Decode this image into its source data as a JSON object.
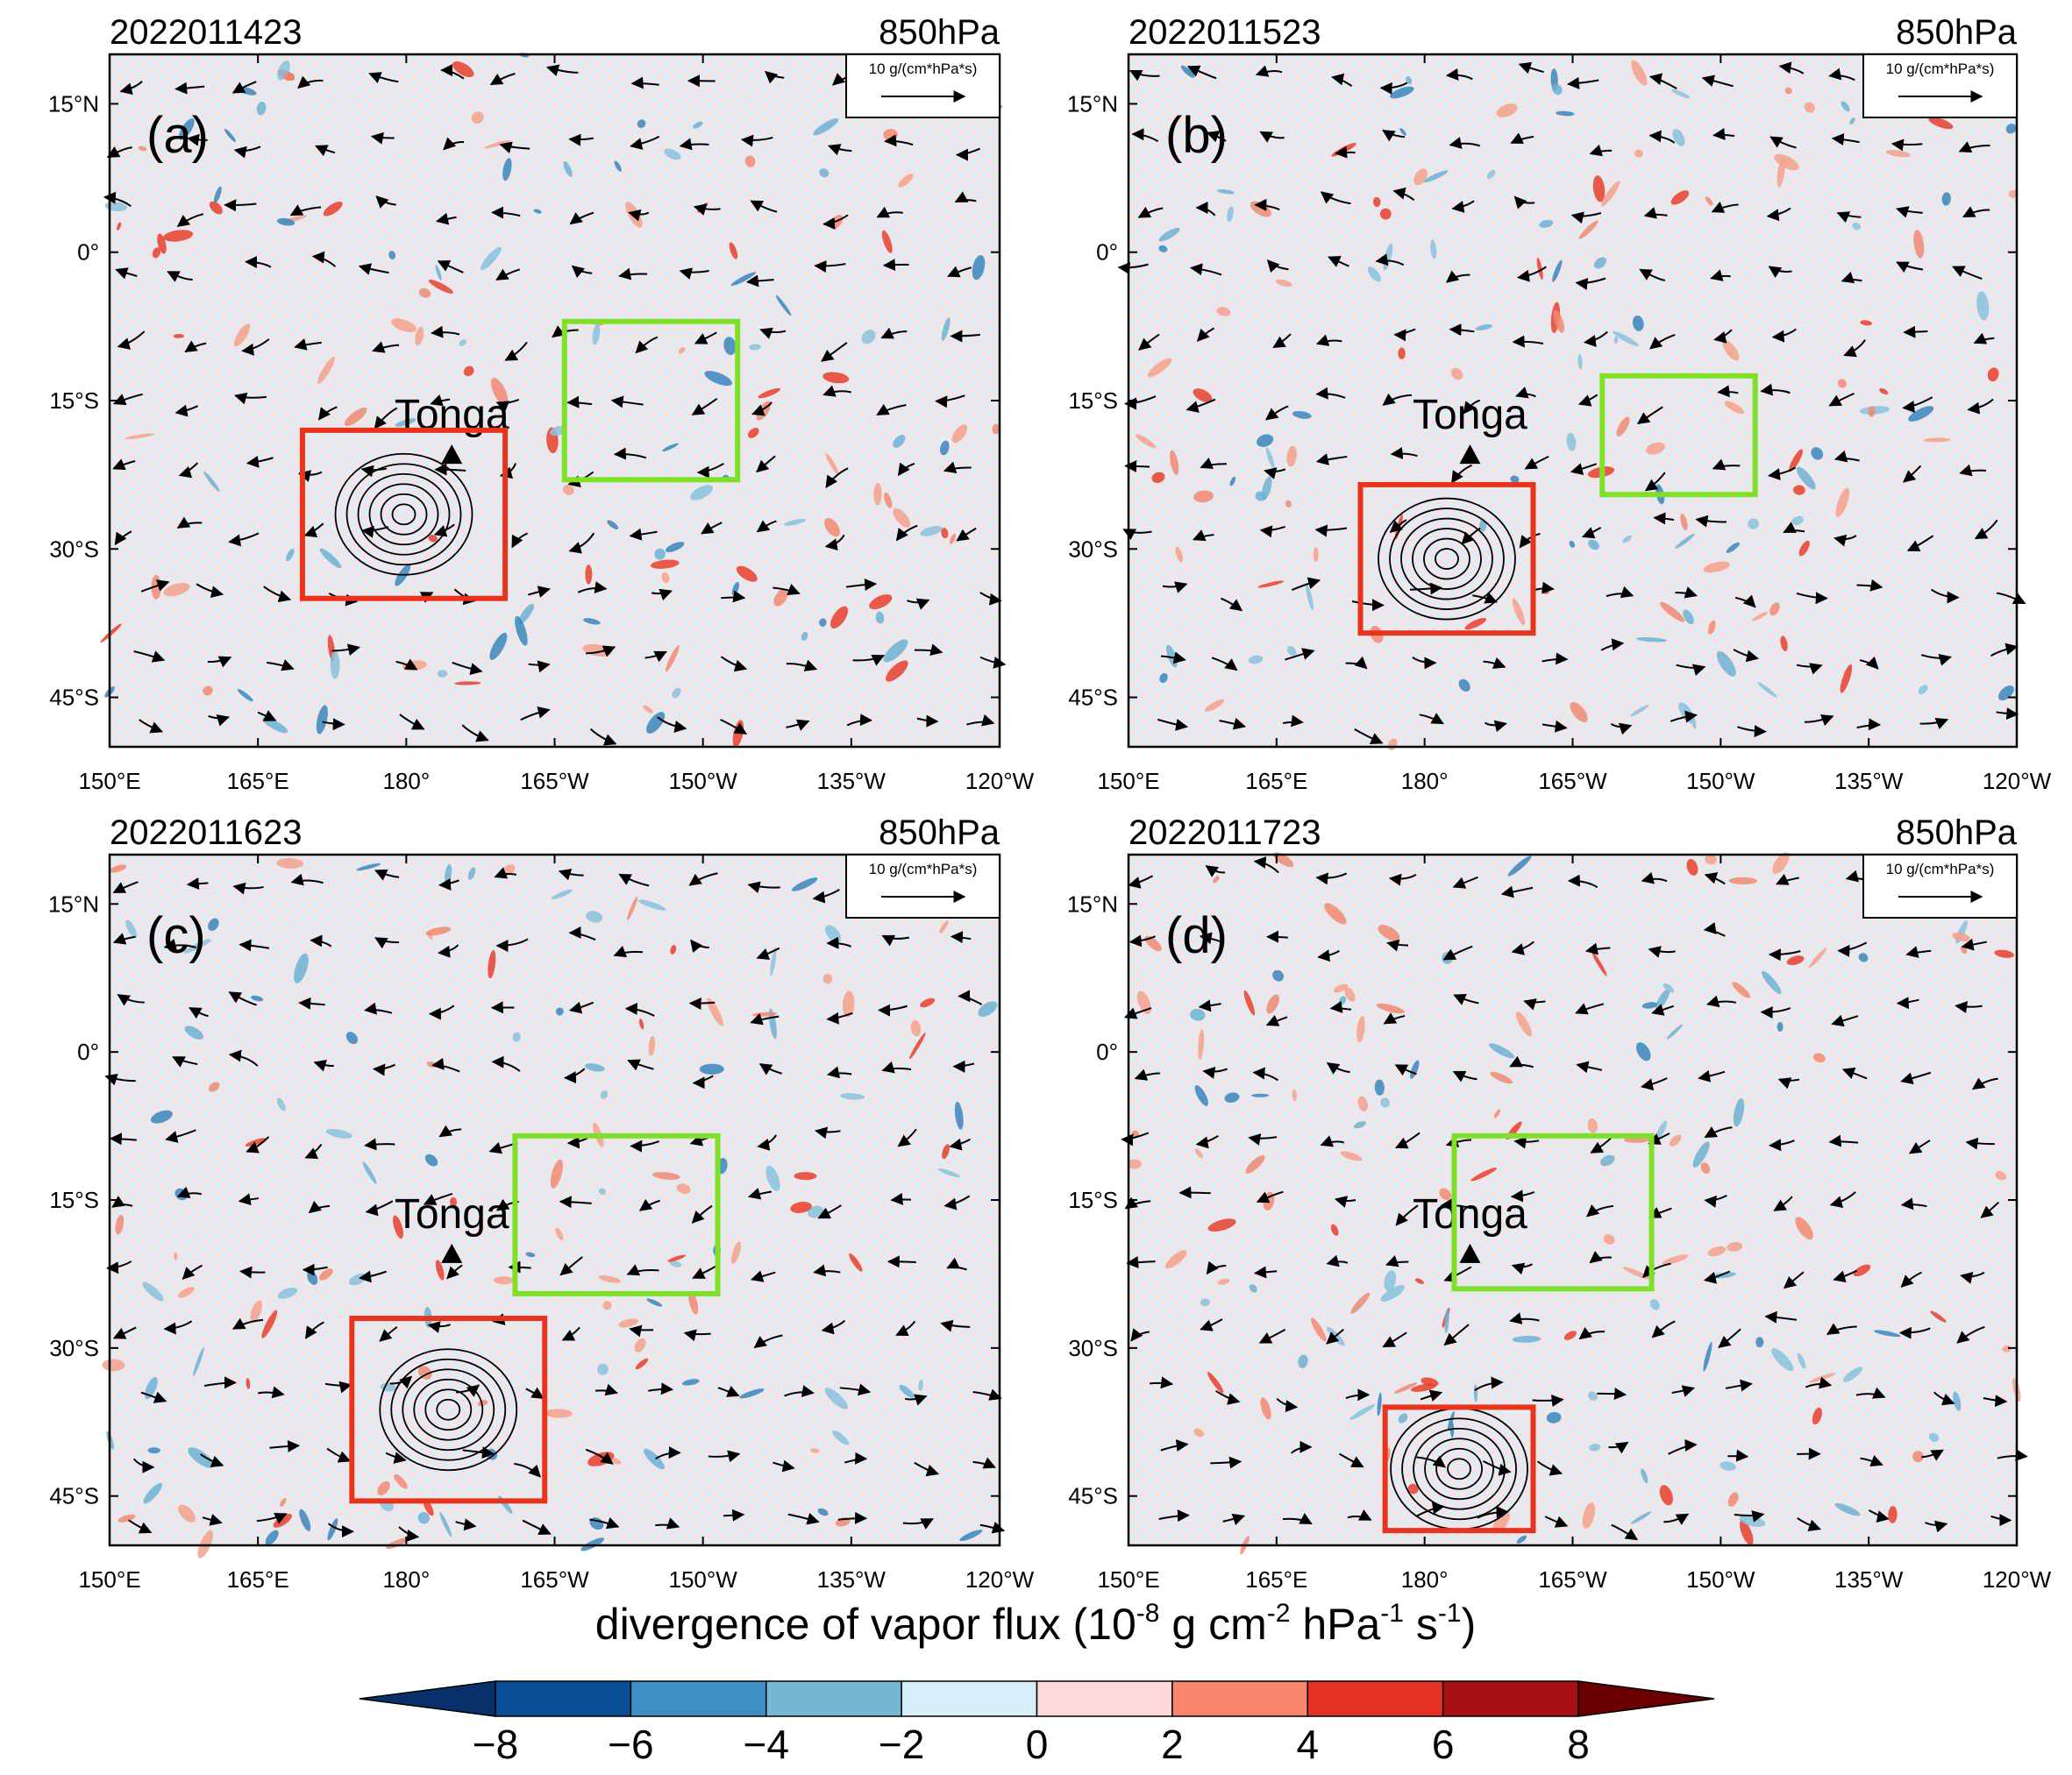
{
  "chart_data": {
    "type": "heatmap",
    "figure_kind": "four-panel map of divergence of vapor flux with streamlines",
    "level_label": "850hPa",
    "place_label": "Tonga",
    "place_marker": {
      "lon": 184.6,
      "lat": -20.5
    },
    "lon_ticks": [
      {
        "lon": 150,
        "label": "150°E"
      },
      {
        "lon": 165,
        "label": "165°E"
      },
      {
        "lon": 180,
        "label": "180°"
      },
      {
        "lon": 195,
        "label": "165°W"
      },
      {
        "lon": 210,
        "label": "150°W"
      },
      {
        "lon": 225,
        "label": "135°W"
      },
      {
        "lon": 240,
        "label": "120°W"
      }
    ],
    "lat_ticks": [
      {
        "lat": 15,
        "label": "15°N"
      },
      {
        "lat": 0,
        "label": "0°"
      },
      {
        "lat": -15,
        "label": "15°S"
      },
      {
        "lat": -30,
        "label": "30°S"
      },
      {
        "lat": -45,
        "label": "45°S"
      }
    ],
    "lon_range": [
      150,
      240
    ],
    "lat_range": [
      -50,
      20
    ],
    "reference_vector": {
      "label": "10 g/(cm*hPa*s)"
    },
    "colors": {
      "red_box": "#e8341c",
      "green_box": "#7fe02a",
      "arrow": "#000000"
    },
    "panels": [
      {
        "date": "2022011423",
        "tag": "(a)",
        "red_box": [
          169.5,
          -35,
          190,
          -18
        ],
        "green_box": [
          196,
          -23,
          213.5,
          -7
        ]
      },
      {
        "date": "2022011523",
        "tag": "(b)",
        "red_box": [
          173.5,
          -38.5,
          191,
          -23.5
        ],
        "green_box": [
          198,
          -24.5,
          213.5,
          -12.5
        ]
      },
      {
        "date": "2022011623",
        "tag": "(c)",
        "red_box": [
          174.5,
          -45.5,
          194,
          -27
        ],
        "green_box": [
          191,
          -24.5,
          211.5,
          -8.5
        ]
      },
      {
        "date": "2022011723",
        "tag": "(d)",
        "red_box": [
          176,
          -48.5,
          191,
          -36
        ],
        "green_box": [
          183,
          -24,
          203,
          -8.5
        ]
      }
    ],
    "colorbar": {
      "label_prefix": "divergence of vapor flux (10",
      "label_exp1": "-8",
      "label_mid1": " g cm",
      "label_exp2": "-2",
      "label_mid2": " hPa",
      "label_exp3": "-1",
      "label_mid3": " s",
      "label_exp4": "-1",
      "label_suffix": ")",
      "ticks": [
        "−8",
        "−6",
        "−4",
        "−2",
        "0",
        "2",
        "4",
        "6",
        "8"
      ],
      "boundaries": [
        -8,
        -6,
        -4,
        -2,
        0,
        2,
        4,
        6,
        8
      ],
      "colors": [
        "#08306b",
        "#0a4f96",
        "#3f8fc6",
        "#74b8d6",
        "#d6eef7",
        "#fdd9d9",
        "#f7866a",
        "#e53224",
        "#a50f15",
        "#6b0000"
      ]
    }
  }
}
